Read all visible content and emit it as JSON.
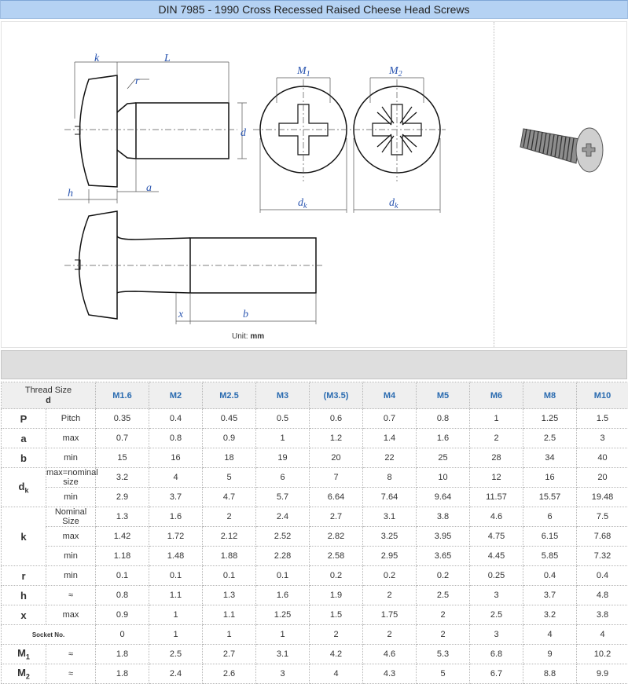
{
  "title": "DIN 7985 - 1990 Cross Recessed Raised Cheese Head Screws",
  "diagram": {
    "labels": {
      "k": "k",
      "L": "L",
      "r": "r",
      "d": "d",
      "M1": "M",
      "M1_sub": "1",
      "M2": "M",
      "M2_sub": "2",
      "dk": "d",
      "dk_sub": "k",
      "h": "h",
      "a": "a",
      "x": "x",
      "b": "b"
    },
    "unit_label": "Unit:",
    "unit_value": "mm"
  },
  "table": {
    "header_line1": "Thread Size",
    "header_line2": "d",
    "sizes": [
      "M1.6",
      "M2",
      "M2.5",
      "M3",
      "(M3.5)",
      "M4",
      "M5",
      "M6",
      "M8",
      "M10"
    ],
    "groups": [
      {
        "symbol": "P",
        "sub": "",
        "rows": [
          {
            "desc": "Pitch",
            "values": [
              "0.35",
              "0.4",
              "0.45",
              "0.5",
              "0.6",
              "0.7",
              "0.8",
              "1",
              "1.25",
              "1.5"
            ]
          }
        ]
      },
      {
        "symbol": "a",
        "sub": "",
        "rows": [
          {
            "desc": "max",
            "values": [
              "0.7",
              "0.8",
              "0.9",
              "1",
              "1.2",
              "1.4",
              "1.6",
              "2",
              "2.5",
              "3"
            ]
          }
        ]
      },
      {
        "symbol": "b",
        "sub": "",
        "rows": [
          {
            "desc": "min",
            "values": [
              "15",
              "16",
              "18",
              "19",
              "20",
              "22",
              "25",
              "28",
              "34",
              "40"
            ]
          }
        ]
      },
      {
        "symbol": "d",
        "sub": "k",
        "rows": [
          {
            "desc": "max=nominal size",
            "values": [
              "3.2",
              "4",
              "5",
              "6",
              "7",
              "8",
              "10",
              "12",
              "16",
              "20"
            ]
          },
          {
            "desc": "min",
            "values": [
              "2.9",
              "3.7",
              "4.7",
              "5.7",
              "6.64",
              "7.64",
              "9.64",
              "11.57",
              "15.57",
              "19.48"
            ]
          }
        ]
      },
      {
        "symbol": "k",
        "sub": "",
        "rows": [
          {
            "desc": "Nominal Size",
            "values": [
              "1.3",
              "1.6",
              "2",
              "2.4",
              "2.7",
              "3.1",
              "3.8",
              "4.6",
              "6",
              "7.5"
            ]
          },
          {
            "desc": "max",
            "values": [
              "1.42",
              "1.72",
              "2.12",
              "2.52",
              "2.82",
              "3.25",
              "3.95",
              "4.75",
              "6.15",
              "7.68"
            ]
          },
          {
            "desc": "min",
            "values": [
              "1.18",
              "1.48",
              "1.88",
              "2.28",
              "2.58",
              "2.95",
              "3.65",
              "4.45",
              "5.85",
              "7.32"
            ]
          }
        ]
      },
      {
        "symbol": "r",
        "sub": "",
        "rows": [
          {
            "desc": "min",
            "values": [
              "0.1",
              "0.1",
              "0.1",
              "0.1",
              "0.2",
              "0.2",
              "0.2",
              "0.25",
              "0.4",
              "0.4"
            ]
          }
        ]
      },
      {
        "symbol": "h",
        "sub": "",
        "rows": [
          {
            "desc": "≈",
            "values": [
              "0.8",
              "1.1",
              "1.3",
              "1.6",
              "1.9",
              "2",
              "2.5",
              "3",
              "3.7",
              "4.8"
            ]
          }
        ]
      },
      {
        "symbol": "x",
        "sub": "",
        "rows": [
          {
            "desc": "max",
            "values": [
              "0.9",
              "1",
              "1.1",
              "1.25",
              "1.5",
              "1.75",
              "2",
              "2.5",
              "3.2",
              "3.8"
            ]
          }
        ]
      },
      {
        "symbol": "",
        "sub": "",
        "span": true,
        "rows": [
          {
            "desc": "Socket No.",
            "values": [
              "0",
              "1",
              "1",
              "1",
              "2",
              "2",
              "2",
              "3",
              "4",
              "4"
            ]
          }
        ]
      },
      {
        "symbol": "M",
        "sub": "1",
        "rows": [
          {
            "desc": "≈",
            "values": [
              "1.8",
              "2.5",
              "2.7",
              "3.1",
              "4.2",
              "4.6",
              "5.3",
              "6.8",
              "9",
              "10.2"
            ]
          }
        ]
      },
      {
        "symbol": "M",
        "sub": "2",
        "rows": [
          {
            "desc": "≈",
            "values": [
              "1.8",
              "2.4",
              "2.6",
              "3",
              "4",
              "4.3",
              "5",
              "6.7",
              "8.8",
              "9.9"
            ]
          }
        ]
      }
    ]
  }
}
